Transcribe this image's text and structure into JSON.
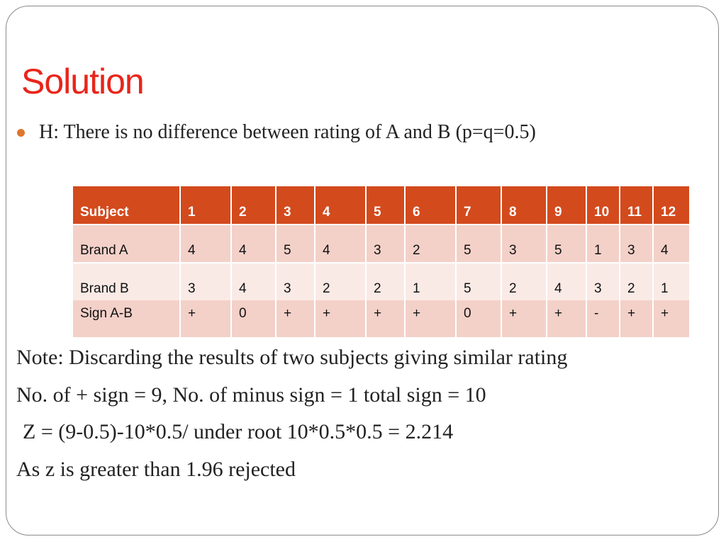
{
  "header": {
    "title": "Solution"
  },
  "bullets": [
    "H: There is no difference between rating of A and B (p=q=0.5)"
  ],
  "table": {
    "header": [
      "Subject",
      "1",
      "2",
      "3",
      "4",
      "5",
      "6",
      "7",
      "8",
      "9",
      "10",
      "11",
      "12"
    ],
    "rows": [
      [
        "Brand A",
        "4",
        "4",
        "5",
        "4",
        "3",
        "2",
        "5",
        "3",
        "5",
        "1",
        "3",
        "4"
      ],
      [
        "Brand B",
        "3",
        "4",
        "3",
        "2",
        "2",
        "1",
        "5",
        "2",
        "4",
        "3",
        "2",
        "1"
      ],
      [
        "Sign A-B",
        "+",
        "0",
        "+",
        "+",
        "+",
        "+",
        "0",
        "+",
        "+",
        "-",
        "+",
        "+"
      ]
    ]
  },
  "notes": [
    "Note: Discarding the results of two subjects giving similar rating",
    "No. of + sign = 9, No. of minus sign = 1 total sign = 10",
    "Z = (9-0.5)-10*0.5/ under root 10*0.5*0.5 = 2.214",
    "As z is greater than 1.96 rejected"
  ]
}
